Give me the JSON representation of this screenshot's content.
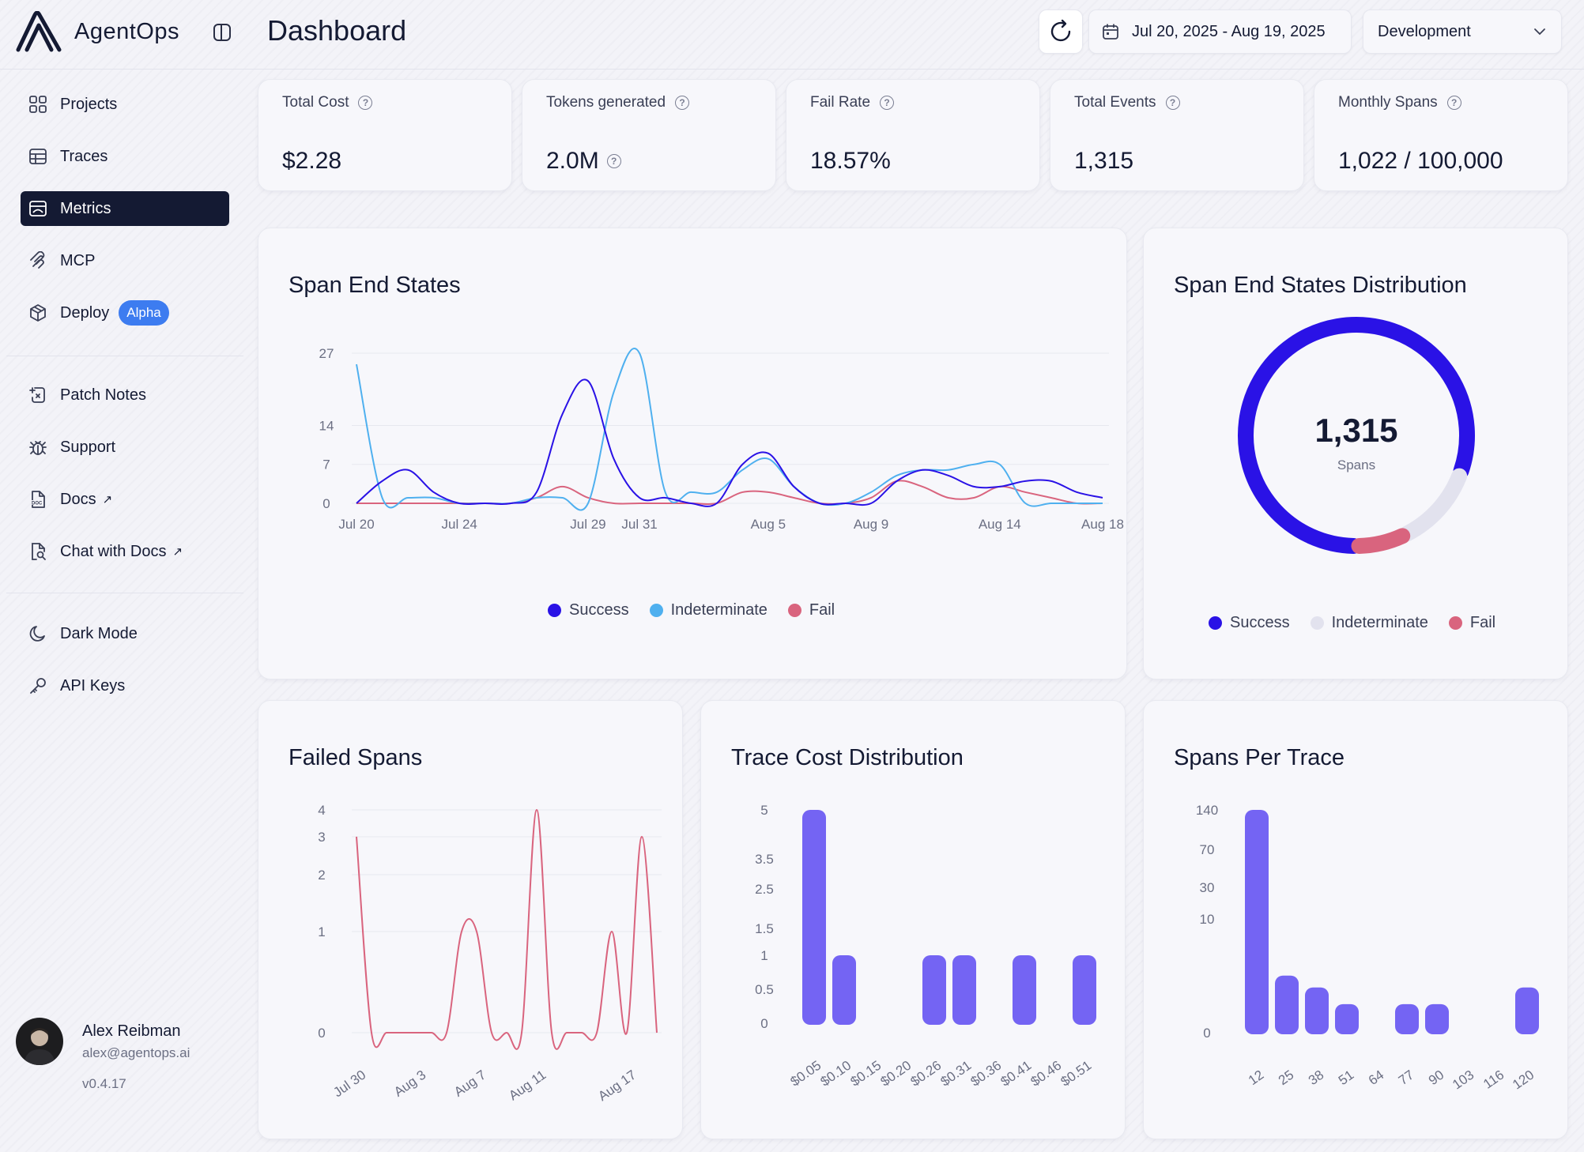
{
  "app": {
    "name": "AgentOps",
    "page_title": "Dashboard"
  },
  "toolbar": {
    "date_range": "Jul 20, 2025 - Aug 19, 2025",
    "environment": "Development"
  },
  "sidebar": {
    "items": [
      {
        "label": "Projects",
        "icon": "grid-icon"
      },
      {
        "label": "Traces",
        "icon": "table-icon"
      },
      {
        "label": "Metrics",
        "icon": "chart-icon",
        "active": true
      },
      {
        "label": "MCP",
        "icon": "mcp-icon"
      },
      {
        "label": "Deploy",
        "icon": "box-icon",
        "badge": "Alpha"
      },
      {
        "label": "Patch Notes",
        "icon": "patch-icon"
      },
      {
        "label": "Support",
        "icon": "bug-icon"
      },
      {
        "label": "Docs",
        "icon": "doc-icon",
        "external": "↗"
      },
      {
        "label": "Chat with Docs",
        "icon": "doc-search-icon",
        "external": "↗"
      },
      {
        "label": "Dark Mode",
        "icon": "moon-icon"
      },
      {
        "label": "API Keys",
        "icon": "key-icon"
      }
    ],
    "user": {
      "name": "Alex Reibman",
      "email": "alex@agentops.ai",
      "version": "v0.4.17"
    }
  },
  "stats": [
    {
      "label": "Total Cost",
      "value": "$2.28"
    },
    {
      "label": "Tokens generated",
      "value": "2.0M"
    },
    {
      "label": "Fail Rate",
      "value": "18.57%"
    },
    {
      "label": "Total Events",
      "value": "1,315"
    },
    {
      "label": "Monthly Spans",
      "value": "1,022 / 100,000"
    }
  ],
  "cards": {
    "span_end_states": "Span End States",
    "distribution": "Span End States Distribution",
    "failed_spans": "Failed Spans",
    "trace_cost": "Trace Cost Distribution",
    "spans_per_trace": "Spans Per Trace"
  },
  "colors": {
    "success": "#2a12e6",
    "indeterminate": "#4fb0ef",
    "fail": "#d9647e",
    "bar": "#7464f3",
    "donut_indeterminate": "#e2e2ee"
  },
  "chart_data": [
    {
      "type": "line",
      "title": "Span End States",
      "x_ticks": [
        "Jul 20",
        "Jul 24",
        "Jul 29",
        "Jul 31",
        "Aug 5",
        "Aug 9",
        "Aug 14",
        "Aug 18"
      ],
      "y_ticks": [
        0,
        7,
        14,
        27
      ],
      "ylim": [
        0,
        27
      ],
      "x": [
        "Jul 20",
        "Jul 21",
        "Jul 22",
        "Jul 23",
        "Jul 24",
        "Jul 25",
        "Jul 26",
        "Jul 27",
        "Jul 28",
        "Jul 29",
        "Jul 30",
        "Jul 31",
        "Aug 1",
        "Aug 2",
        "Aug 3",
        "Aug 4",
        "Aug 5",
        "Aug 6",
        "Aug 7",
        "Aug 8",
        "Aug 9",
        "Aug 10",
        "Aug 11",
        "Aug 12",
        "Aug 13",
        "Aug 14",
        "Aug 15",
        "Aug 16",
        "Aug 17",
        "Aug 18"
      ],
      "series": [
        {
          "name": "Success",
          "values": [
            0,
            4,
            6,
            2,
            0,
            0,
            0,
            2,
            16,
            22,
            8,
            1,
            1,
            0,
            0,
            7,
            9,
            3,
            0,
            0,
            0,
            4,
            6,
            5,
            3,
            3,
            4,
            4,
            2,
            1
          ]
        },
        {
          "name": "Indeterminate",
          "values": [
            25,
            1,
            1,
            1,
            0,
            0,
            0,
            1,
            1,
            0,
            20,
            27,
            2,
            2,
            2,
            6,
            8,
            3,
            0,
            0,
            2,
            5,
            6,
            6,
            7,
            7,
            0,
            0,
            0,
            0
          ]
        },
        {
          "name": "Fail",
          "values": [
            0,
            0,
            0,
            0,
            0,
            0,
            0,
            1,
            3,
            1,
            0,
            0,
            0,
            0,
            0,
            2,
            2,
            1,
            0,
            0,
            1,
            4,
            3,
            1,
            1,
            3,
            2,
            1,
            0,
            0
          ]
        }
      ],
      "legend": "bottom"
    },
    {
      "type": "pie",
      "title": "Span End States Distribution",
      "center_value": "1,315",
      "center_label": "Spans",
      "categories": [
        "Success",
        "Indeterminate",
        "Fail"
      ],
      "values": [
        1060,
        160,
        95
      ],
      "legend": "bottom"
    },
    {
      "type": "line",
      "title": "Failed Spans",
      "x_ticks": [
        "Jul 30",
        "Aug 3",
        "Aug 7",
        "Aug 11",
        "Aug 17"
      ],
      "y_ticks": [
        0,
        1,
        2,
        3,
        4
      ],
      "ylim": [
        0,
        4
      ],
      "x": [
        "Jul 29",
        "Jul 30",
        "Jul 31",
        "Aug 1",
        "Aug 2",
        "Aug 3",
        "Aug 4",
        "Aug 5",
        "Aug 6",
        "Aug 7",
        "Aug 8",
        "Aug 9",
        "Aug 10",
        "Aug 11",
        "Aug 12",
        "Aug 13",
        "Aug 14",
        "Aug 15",
        "Aug 16",
        "Aug 17",
        "Aug 18"
      ],
      "series": [
        {
          "name": "Fail",
          "values": [
            3,
            0,
            0,
            0,
            0,
            0,
            0,
            1,
            1,
            0,
            0,
            0,
            4,
            0,
            0,
            0,
            0,
            1,
            0,
            3,
            0
          ]
        }
      ]
    },
    {
      "type": "bar",
      "title": "Trace Cost Distribution",
      "categories": [
        "$0.05",
        "$0.10",
        "$0.15",
        "$0.20",
        "$0.26",
        "$0.31",
        "$0.36",
        "$0.41",
        "$0.46",
        "$0.51"
      ],
      "values": [
        5,
        1,
        0,
        0,
        1,
        1,
        0,
        1,
        0,
        1
      ],
      "y_ticks": [
        0,
        0.5,
        1,
        1.5,
        2.5,
        3.5,
        5
      ],
      "ylim": [
        0,
        5
      ]
    },
    {
      "type": "bar",
      "title": "Spans Per Trace",
      "categories": [
        "12",
        "25",
        "38",
        "51",
        "64",
        "77",
        "90",
        "103",
        "116",
        "120"
      ],
      "values": [
        140,
        3,
        2,
        1,
        0,
        1,
        1,
        0,
        0,
        2
      ],
      "y_ticks": [
        0,
        10,
        30,
        70,
        140
      ],
      "ylim": [
        0,
        140
      ],
      "y_scale": "log"
    }
  ]
}
